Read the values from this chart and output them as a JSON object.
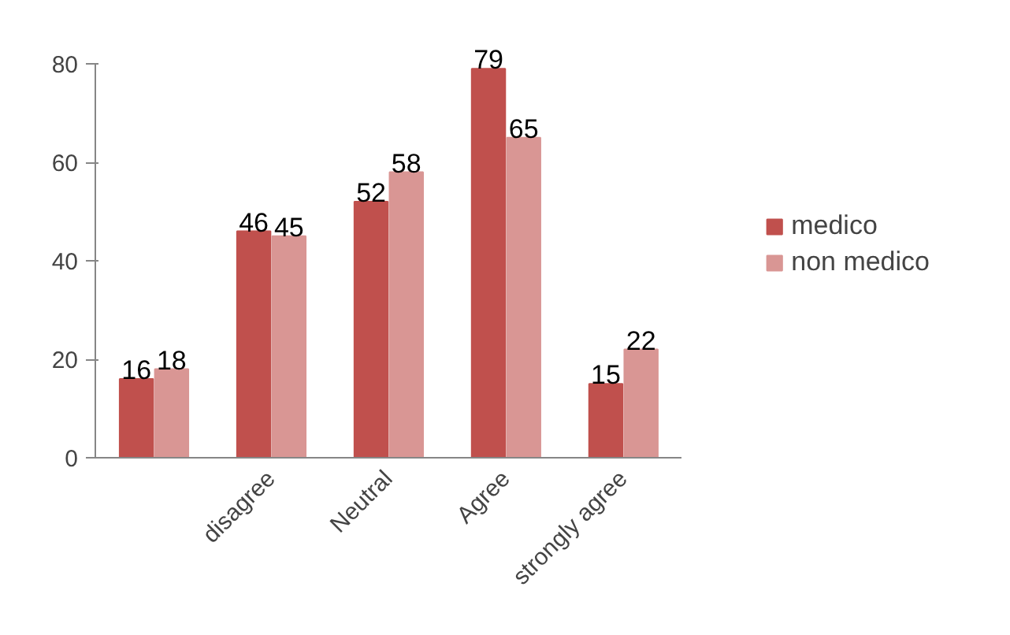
{
  "chart_data": {
    "type": "bar",
    "categories": [
      null,
      "disagree",
      "Neutral",
      "Agree",
      "strongly agree"
    ],
    "series": [
      {
        "name": "medico",
        "color": "#c0504d",
        "values": [
          16,
          46,
          52,
          79,
          15
        ]
      },
      {
        "name": "non medico",
        "color": "#d99694",
        "values": [
          18,
          45,
          58,
          65,
          22
        ]
      }
    ],
    "ylim": [
      0,
      80
    ],
    "yticks": [
      0,
      20,
      40,
      60,
      80
    ],
    "data_labels": true,
    "legend": "right",
    "grid": false
  }
}
